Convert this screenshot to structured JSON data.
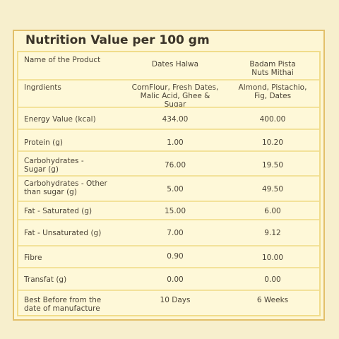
{
  "title": "Nutrition Value per 100 gm",
  "table": {
    "rows": [
      {
        "label": "Name of the Product",
        "dates_halwa": "Dates Halwa",
        "badam_pista": "Badam Pista Nuts Mithai"
      },
      {
        "label": "Ingrdients",
        "dates_halwa": "CornFlour, Fresh Dates, Malic Acid, Ghee & Sugar",
        "badam_pista": "Almond, Pistachio, Fig, Dates"
      },
      {
        "label": "Energy Value (kcal)",
        "dates_halwa": "434.00",
        "badam_pista": "400.00"
      },
      {
        "label": "Protein (g)",
        "dates_halwa": "1.00",
        "badam_pista": "10.20"
      },
      {
        "label": "Carbohydrates - Sugar (g)",
        "dates_halwa": "76.00",
        "badam_pista": "19.50"
      },
      {
        "label": "Carbohydrates - Other than sugar (g)",
        "dates_halwa": "5.00",
        "badam_pista": "49.50"
      },
      {
        "label": "Fat - Saturated (g)",
        "dates_halwa": "15.00",
        "badam_pista": "6.00"
      },
      {
        "label": "Fat - Unsaturated (g)",
        "dates_halwa": "7.00",
        "badam_pista": "9.12"
      },
      {
        "label": "Fibre",
        "dates_halwa": "0.90",
        "badam_pista": "10.00"
      },
      {
        "label": "Transfat (g)",
        "dates_halwa": "0.00",
        "badam_pista": "0.00"
      },
      {
        "label": "Best Before from the date of manufacture",
        "dates_halwa": "10 Days",
        "badam_pista": "6 Weeks"
      }
    ]
  },
  "colors": {
    "background": "#f7efcd",
    "border": "#e2c06a",
    "row_line": "#f3e29a"
  }
}
